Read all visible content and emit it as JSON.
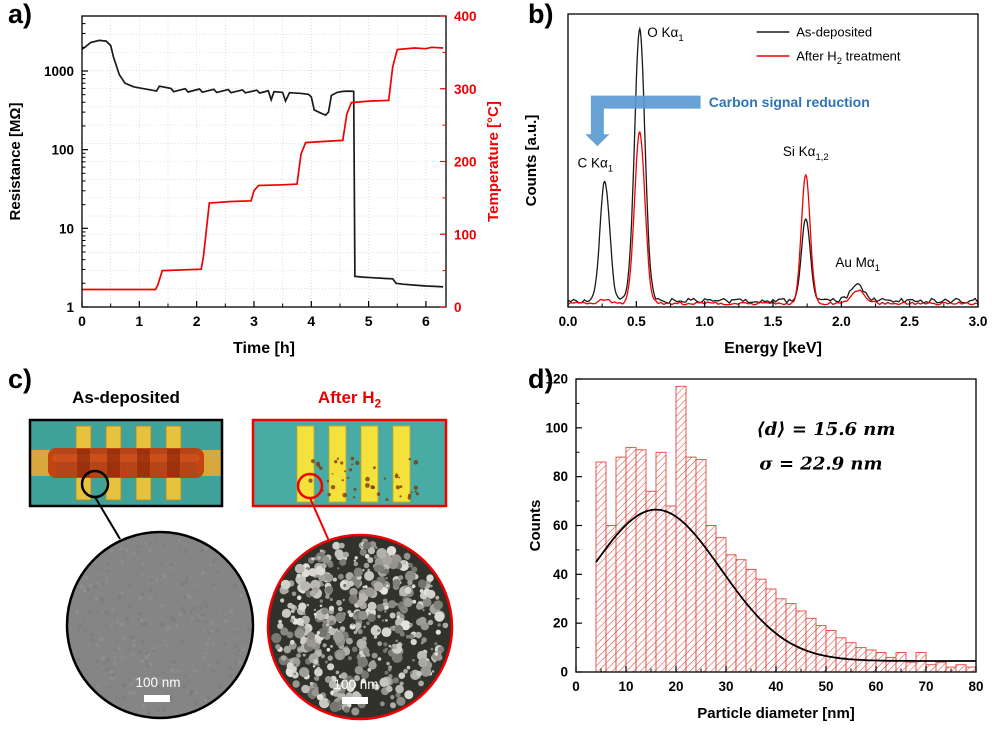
{
  "figure": {
    "panel_letters": {
      "a": "a)",
      "b": "b)",
      "c": "c)",
      "d": "d)"
    }
  },
  "chart_data": [
    {
      "id": "a",
      "type": "line",
      "x_label": "Time [h]",
      "y_left_label": "Resistance [MΩ]",
      "y_right_label": "Temperature [°C]",
      "x_range": [
        0,
        6.35
      ],
      "x_ticks": [
        0,
        1,
        2,
        3,
        4,
        5,
        6
      ],
      "y_left_log_range": [
        1,
        5000
      ],
      "y_left_ticks": [
        1,
        10,
        100,
        1000
      ],
      "y_right_range": [
        0,
        400
      ],
      "y_right_ticks": [
        0,
        100,
        200,
        300,
        400
      ],
      "grid": "dotted",
      "series": [
        {
          "name": "resistance",
          "axis": "left",
          "color": "#1a1a1a",
          "points": [
            [
              0,
              1900
            ],
            [
              0.05,
              2000
            ],
            [
              0.15,
              2300
            ],
            [
              0.3,
              2450
            ],
            [
              0.42,
              2400
            ],
            [
              0.5,
              2100
            ],
            [
              0.55,
              1500
            ],
            [
              0.65,
              900
            ],
            [
              0.75,
              700
            ],
            [
              0.9,
              630
            ],
            [
              1.05,
              600
            ],
            [
              1.2,
              575
            ],
            [
              1.3,
              555
            ],
            [
              1.35,
              640
            ],
            [
              1.55,
              600
            ],
            [
              1.6,
              545
            ],
            [
              1.8,
              595
            ],
            [
              1.85,
              540
            ],
            [
              2.05,
              590
            ],
            [
              2.1,
              538
            ],
            [
              2.3,
              585
            ],
            [
              2.35,
              535
            ],
            [
              2.55,
              580
            ],
            [
              2.6,
              530
            ],
            [
              2.8,
              575
            ],
            [
              2.85,
              528
            ],
            [
              3.05,
              570
            ],
            [
              3.1,
              525
            ],
            [
              3.25,
              560
            ],
            [
              3.3,
              430
            ],
            [
              3.35,
              545
            ],
            [
              3.5,
              535
            ],
            [
              3.55,
              415
            ],
            [
              3.62,
              530
            ],
            [
              3.8,
              520
            ],
            [
              3.95,
              505
            ],
            [
              4.0,
              470
            ],
            [
              4.05,
              320
            ],
            [
              4.15,
              295
            ],
            [
              4.25,
              275
            ],
            [
              4.3,
              300
            ],
            [
              4.35,
              490
            ],
            [
              4.45,
              535
            ],
            [
              4.55,
              550
            ],
            [
              4.65,
              555
            ],
            [
              4.74,
              552
            ],
            [
              4.76,
              2.45
            ],
            [
              4.9,
              2.4
            ],
            [
              5.1,
              2.35
            ],
            [
              5.3,
              2.3
            ],
            [
              5.42,
              2.28
            ],
            [
              5.48,
              2.0
            ],
            [
              5.6,
              1.95
            ],
            [
              5.8,
              1.9
            ],
            [
              6.0,
              1.85
            ],
            [
              6.2,
              1.82
            ],
            [
              6.3,
              1.8
            ]
          ]
        },
        {
          "name": "temperature",
          "axis": "right",
          "color": "#f00000",
          "points": [
            [
              0,
              24
            ],
            [
              1.28,
              24
            ],
            [
              1.32,
              30
            ],
            [
              1.4,
              50
            ],
            [
              2.08,
              52
            ],
            [
              2.12,
              70
            ],
            [
              2.22,
              143
            ],
            [
              2.6,
              145
            ],
            [
              2.95,
              146
            ],
            [
              3.0,
              160
            ],
            [
              3.08,
              167
            ],
            [
              3.5,
              168
            ],
            [
              3.75,
              169
            ],
            [
              3.82,
              210
            ],
            [
              3.9,
              226
            ],
            [
              4.3,
              228
            ],
            [
              4.55,
              229
            ],
            [
              4.62,
              265
            ],
            [
              4.7,
              281
            ],
            [
              5.0,
              283
            ],
            [
              5.35,
              284
            ],
            [
              5.42,
              330
            ],
            [
              5.5,
              354
            ],
            [
              5.8,
              356
            ],
            [
              6.0,
              355
            ],
            [
              6.1,
              357
            ],
            [
              6.3,
              356
            ]
          ]
        }
      ]
    },
    {
      "id": "b",
      "type": "line",
      "x_label": "Energy [keV]",
      "y_label": "Counts [a.u.]",
      "x_range": [
        0,
        3
      ],
      "x_ticks": [
        0,
        0.5,
        1,
        1.5,
        2,
        2.5,
        3
      ],
      "legend": [
        {
          "pre": "As-deposited",
          "sub": "",
          "post": "",
          "color": "#1a1a1a"
        },
        {
          "pre": "After H",
          "sub": "2",
          "post": " treatment",
          "color": "#f00000"
        }
      ],
      "annotation": {
        "text": "Carbon signal reduction",
        "color": "#2e74b5",
        "arrow_color": "#5b9bd5"
      },
      "baseline": {
        "as_deposited": 0.022,
        "after_h2": 0.013
      },
      "peaks": [
        {
          "pre": "C K",
          "greek": "α",
          "sub": "1",
          "x": 0.27,
          "width": 0.035,
          "as_deposited": 0.42,
          "after_h2": 0.015,
          "label_x": 0.2,
          "label_y": 0.49,
          "anchor": "middle"
        },
        {
          "pre": "O K",
          "greek": "α",
          "sub": "1",
          "x": 0.525,
          "width": 0.038,
          "as_deposited": 0.95,
          "after_h2": 0.6,
          "label_x": 0.58,
          "label_y": 0.95,
          "anchor": "start"
        },
        {
          "pre": "Si K",
          "greek": "α",
          "sub": "1,2",
          "x": 1.74,
          "width": 0.032,
          "as_deposited": 0.29,
          "after_h2": 0.45,
          "label_x": 1.74,
          "label_y": 0.53,
          "anchor": "middle"
        },
        {
          "pre": "Au M",
          "greek": "α",
          "sub": "1",
          "x": 2.12,
          "width": 0.05,
          "as_deposited": 0.055,
          "after_h2": 0.045,
          "label_x": 2.12,
          "label_y": 0.14,
          "anchor": "middle"
        }
      ]
    },
    {
      "id": "d",
      "type": "bar",
      "x_label": "Particle diameter [nm]",
      "y_label": "Counts",
      "x_range": [
        0,
        80
      ],
      "x_ticks": [
        0,
        10,
        20,
        30,
        40,
        50,
        60,
        70,
        80
      ],
      "y_range": [
        0,
        120
      ],
      "y_ticks": [
        0,
        20,
        40,
        60,
        80,
        100,
        120
      ],
      "bin_start": 4,
      "bin_width": 2,
      "bar_color": "#e8423a",
      "values": [
        86,
        60,
        88,
        92,
        91,
        74,
        90,
        68,
        117,
        88,
        87,
        60,
        55,
        48,
        46,
        42,
        38,
        34,
        30,
        28,
        25,
        22,
        19,
        17,
        14,
        12,
        10,
        9,
        8,
        6,
        8,
        4,
        8,
        3,
        4,
        2,
        3,
        2
      ],
      "fit": {
        "mu": 16,
        "amp": 62,
        "sigma": 13,
        "baseline": 4.5,
        "color": "#000000"
      },
      "annotation_line1": "⟨d⟩ = 15.6 nm",
      "annotation_line2": "σ = 22.9 nm"
    }
  ],
  "panel_c": {
    "left_title": "As-deposited",
    "right_title_pre": "After H",
    "right_title_sub": "2",
    "left_border_color": "#000000",
    "right_border_color": "#f00000",
    "left_scale_bar": "100 nm",
    "right_scale_bar": "100 nm"
  }
}
